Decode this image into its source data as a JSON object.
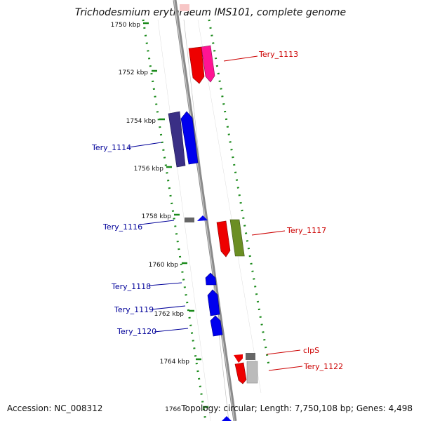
{
  "title": "Trichodesmium erythraeum IMS101, complete genome",
  "footer": {
    "accession": "Accession: NC_008312",
    "summary": "Topology: circular; Length: 7,750,108 bp; Genes: 4,498"
  },
  "ticks": [
    {
      "label": "1750 kbp"
    },
    {
      "label": "1752 kbp"
    },
    {
      "label": "1754 kbp"
    },
    {
      "label": "1756 kbp"
    },
    {
      "label": "1758 kbp"
    },
    {
      "label": "1760 kbp"
    },
    {
      "label": "1762 kbp"
    },
    {
      "label": "1764 kbp"
    },
    {
      "label": "1766"
    }
  ],
  "genes": [
    {
      "name": "Tery_1113",
      "color": "#cc0000"
    },
    {
      "name": "Tery_1114",
      "color": "#000099"
    },
    {
      "name": "Tery_1116",
      "color": "#000099"
    },
    {
      "name": "Tery_1117",
      "color": "#cc0000"
    },
    {
      "name": "Tery_1118",
      "color": "#000099"
    },
    {
      "name": "Tery_1119",
      "color": "#000099"
    },
    {
      "name": "Tery_1120",
      "color": "#000099"
    },
    {
      "name": "clpS",
      "color": "#cc0000"
    },
    {
      "name": "Tery_1122",
      "color": "#cc0000"
    }
  ],
  "colors": {
    "axis": "#8a8a8a",
    "ring_dots": "#1a8a1a",
    "forward_gene_red": "#ff0000",
    "forward_gene_pink": "#ff1493",
    "forward_gene_olive": "#6b8e23",
    "reverse_gene_blue": "#0000ff",
    "reverse_gene_navy": "#3a2f85",
    "gene_grey": "#666666"
  }
}
